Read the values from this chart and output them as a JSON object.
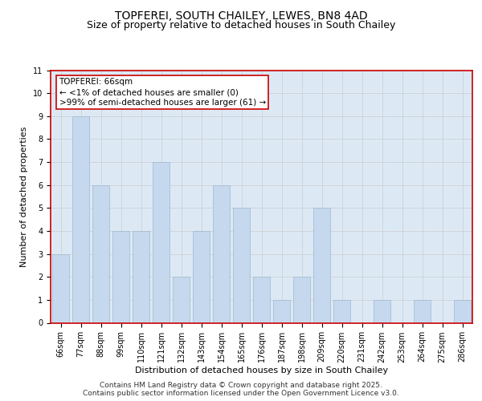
{
  "title1": "TOPFEREI, SOUTH CHAILEY, LEWES, BN8 4AD",
  "title2": "Size of property relative to detached houses in South Chailey",
  "xlabel": "Distribution of detached houses by size in South Chailey",
  "ylabel": "Number of detached properties",
  "categories": [
    "66sqm",
    "77sqm",
    "88sqm",
    "99sqm",
    "110sqm",
    "121sqm",
    "132sqm",
    "143sqm",
    "154sqm",
    "165sqm",
    "176sqm",
    "187sqm",
    "198sqm",
    "209sqm",
    "220sqm",
    "231sqm",
    "242sqm",
    "253sqm",
    "264sqm",
    "275sqm",
    "286sqm"
  ],
  "values": [
    3,
    9,
    6,
    4,
    4,
    7,
    2,
    4,
    6,
    5,
    2,
    1,
    2,
    5,
    1,
    0,
    1,
    0,
    1,
    0,
    1
  ],
  "bar_color": "#c5d8ed",
  "bar_edge_color": "#a0b8d0",
  "annotation_box_text": "TOPFEREI: 66sqm\n← <1% of detached houses are smaller (0)\n>99% of semi-detached houses are larger (61) →",
  "annotation_box_color": "#ffffff",
  "annotation_box_edge_color": "#cc0000",
  "ylim": [
    0,
    11
  ],
  "yticks": [
    0,
    1,
    2,
    3,
    4,
    5,
    6,
    7,
    8,
    9,
    10,
    11
  ],
  "grid_color": "#cccccc",
  "background_color": "#dce9f5",
  "footer_text": "Contains HM Land Registry data © Crown copyright and database right 2025.\nContains public sector information licensed under the Open Government Licence v3.0.",
  "title_fontsize": 10,
  "subtitle_fontsize": 9,
  "axis_label_fontsize": 8,
  "tick_fontsize": 7,
  "annotation_fontsize": 7.5,
  "footer_fontsize": 6.5,
  "spine_color": "#cc0000"
}
